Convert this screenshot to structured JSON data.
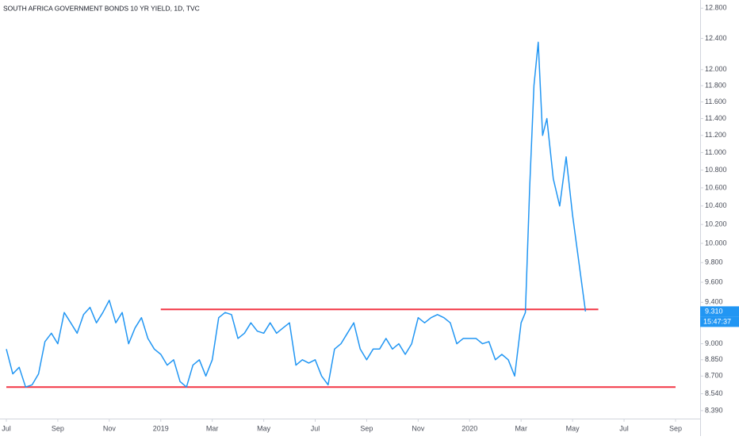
{
  "chart_data": {
    "type": "line",
    "title": "SOUTH AFRICA GOVERNMENT BONDS 10 YR YIELD, 1D, TVC",
    "log_scale": true,
    "grid": false,
    "ylim": [
      8.32,
      12.91
    ],
    "yticks": [
      {
        "value": 8.39,
        "label": "8.390"
      },
      {
        "value": 8.54,
        "label": "8.540"
      },
      {
        "value": 8.7,
        "label": "8.700"
      },
      {
        "value": 8.85,
        "label": "8.850"
      },
      {
        "value": 9.0,
        "label": "9.000"
      },
      {
        "value": 9.4,
        "label": "9.400"
      },
      {
        "value": 9.6,
        "label": "9.600"
      },
      {
        "value": 9.8,
        "label": "9.800"
      },
      {
        "value": 10.0,
        "label": "10.000"
      },
      {
        "value": 10.2,
        "label": "10.200"
      },
      {
        "value": 10.4,
        "label": "10.400"
      },
      {
        "value": 10.6,
        "label": "10.600"
      },
      {
        "value": 10.8,
        "label": "10.800"
      },
      {
        "value": 11.0,
        "label": "11.000"
      },
      {
        "value": 11.2,
        "label": "11.200"
      },
      {
        "value": 11.4,
        "label": "11.400"
      },
      {
        "value": 11.6,
        "label": "11.600"
      },
      {
        "value": 11.8,
        "label": "11.800"
      },
      {
        "value": 12.0,
        "label": "12.000"
      },
      {
        "value": 12.4,
        "label": "12.400"
      },
      {
        "value": 12.8,
        "label": "12.800"
      }
    ],
    "xticks": [
      {
        "value": "2018-07",
        "label": "Jul"
      },
      {
        "value": "2018-09",
        "label": "Sep"
      },
      {
        "value": "2018-11",
        "label": "Nov"
      },
      {
        "value": "2019-01",
        "label": "2019"
      },
      {
        "value": "2019-03",
        "label": "Mar"
      },
      {
        "value": "2019-05",
        "label": "May"
      },
      {
        "value": "2019-07",
        "label": "Jul"
      },
      {
        "value": "2019-09",
        "label": "Sep"
      },
      {
        "value": "2019-11",
        "label": "Nov"
      },
      {
        "value": "2020-01",
        "label": "2020"
      },
      {
        "value": "2020-03",
        "label": "Mar"
      },
      {
        "value": "2020-05",
        "label": "May"
      },
      {
        "value": "2020-07",
        "label": "Jul"
      },
      {
        "value": "2020-09",
        "label": "Sep"
      }
    ],
    "series": [
      {
        "color": "#2196f3",
        "x": [
          "2018-07",
          "2018-07",
          "2018-07",
          "2018-07",
          "2018-08",
          "2018-08",
          "2018-08",
          "2018-08",
          "2018-09",
          "2018-09",
          "2018-09",
          "2018-09",
          "2018-10",
          "2018-10",
          "2018-10",
          "2018-10",
          "2018-11",
          "2018-11",
          "2018-11",
          "2018-11",
          "2018-12",
          "2018-12",
          "2018-12",
          "2018-12",
          "2019-01",
          "2019-01",
          "2019-01",
          "2019-01",
          "2019-02",
          "2019-02",
          "2019-02",
          "2019-02",
          "2019-03",
          "2019-03",
          "2019-03",
          "2019-03",
          "2019-04",
          "2019-04",
          "2019-04",
          "2019-04",
          "2019-05",
          "2019-05",
          "2019-05",
          "2019-05",
          "2019-06",
          "2019-06",
          "2019-06",
          "2019-06",
          "2019-07",
          "2019-07",
          "2019-07",
          "2019-07",
          "2019-08",
          "2019-08",
          "2019-08",
          "2019-08",
          "2019-09",
          "2019-09",
          "2019-09",
          "2019-09",
          "2019-10",
          "2019-10",
          "2019-10",
          "2019-10",
          "2019-11",
          "2019-11",
          "2019-11",
          "2019-11",
          "2019-12",
          "2019-12",
          "2019-12",
          "2019-12",
          "2020-01",
          "2020-01",
          "2020-01",
          "2020-01",
          "2020-02",
          "2020-02",
          "2020-02",
          "2020-02",
          "2020-03",
          "2020-03",
          "2020-03",
          "2020-03",
          "2020-03",
          "2020-03",
          "2020-04",
          "2020-04",
          "2020-04",
          "2020-04",
          "2020-05",
          "2020-05"
        ],
        "values": [
          8.95,
          8.72,
          8.78,
          8.6,
          8.62,
          8.72,
          9.02,
          9.1,
          9.0,
          9.3,
          9.2,
          9.1,
          9.28,
          9.35,
          9.2,
          9.3,
          9.42,
          9.2,
          9.3,
          9.0,
          9.15,
          9.25,
          9.05,
          8.95,
          8.9,
          8.8,
          8.85,
          8.65,
          8.6,
          8.8,
          8.85,
          8.7,
          8.85,
          9.25,
          9.3,
          9.28,
          9.05,
          9.1,
          9.2,
          9.12,
          9.1,
          9.2,
          9.1,
          9.15,
          9.2,
          8.8,
          8.85,
          8.82,
          8.85,
          8.7,
          8.62,
          8.95,
          9.0,
          9.1,
          9.2,
          8.95,
          8.85,
          8.95,
          8.95,
          9.05,
          8.95,
          9.0,
          8.9,
          9.0,
          9.25,
          9.2,
          9.25,
          9.28,
          9.25,
          9.2,
          9.0,
          9.05,
          9.05,
          9.05,
          9.0,
          9.02,
          8.85,
          8.9,
          8.85,
          8.7,
          9.2,
          9.3,
          10.6,
          11.8,
          12.35,
          11.2,
          11.4,
          10.7,
          10.4,
          10.95,
          10.3,
          9.31
        ]
      }
    ],
    "levels": [
      {
        "value": 9.33,
        "from": "2019-01",
        "to": "2020-06",
        "color": "#f23645"
      },
      {
        "value": 8.6,
        "from": "2018-07",
        "to": "2020-09",
        "color": "#f23645"
      }
    ],
    "last_price": {
      "value": 9.31,
      "label": "9.310",
      "countdown": "15:47:37"
    }
  }
}
